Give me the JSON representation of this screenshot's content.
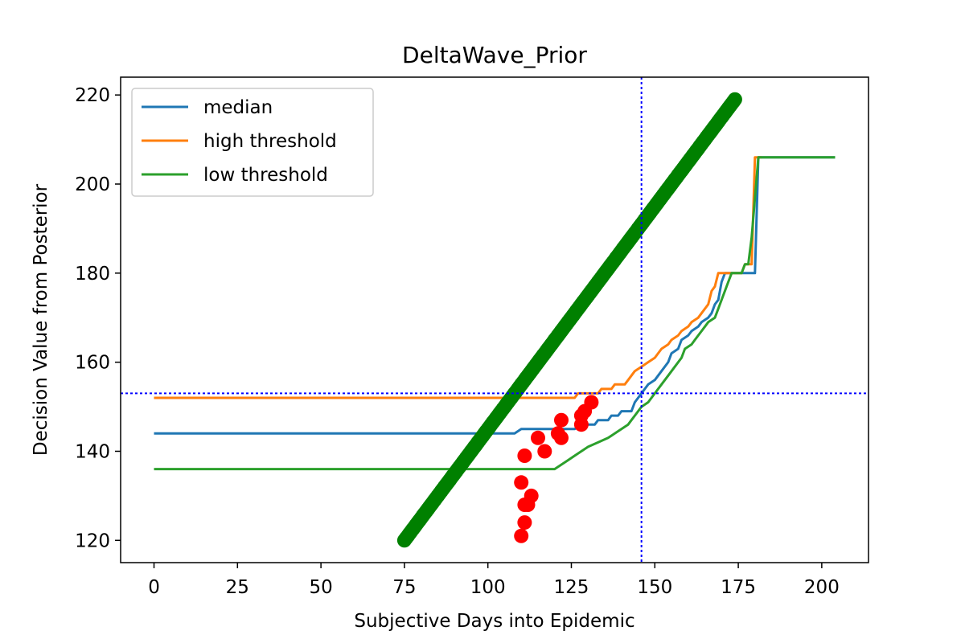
{
  "chart_data": {
    "type": "line",
    "title": "DeltaWave_Prior",
    "xlabel": "Subjective Days into Epidemic",
    "ylabel": "Decision Value from Posterior",
    "xlim": [
      -10,
      214
    ],
    "ylim": [
      115,
      224
    ],
    "xticks": [
      0,
      25,
      50,
      75,
      100,
      125,
      150,
      175,
      200
    ],
    "yticks": [
      120,
      140,
      160,
      180,
      200,
      220
    ],
    "grid": false,
    "legend_position": "top-left",
    "series": [
      {
        "name": "median",
        "color": "#1f77b4",
        "points": [
          [
            0,
            144
          ],
          [
            108,
            144
          ],
          [
            110,
            145
          ],
          [
            126,
            145
          ],
          [
            128,
            146
          ],
          [
            132,
            146
          ],
          [
            133,
            147
          ],
          [
            136,
            147
          ],
          [
            137,
            148
          ],
          [
            139,
            148
          ],
          [
            140,
            149
          ],
          [
            143,
            149
          ],
          [
            144,
            151
          ],
          [
            146,
            153
          ],
          [
            148,
            155
          ],
          [
            150,
            156
          ],
          [
            152,
            158
          ],
          [
            154,
            160
          ],
          [
            155,
            162
          ],
          [
            157,
            163
          ],
          [
            158,
            165
          ],
          [
            160,
            166
          ],
          [
            161,
            167
          ],
          [
            163,
            168
          ],
          [
            164,
            169
          ],
          [
            166,
            170
          ],
          [
            167,
            171
          ],
          [
            168,
            173
          ],
          [
            169,
            174
          ],
          [
            170,
            178
          ],
          [
            171,
            180
          ],
          [
            180,
            180
          ],
          [
            181,
            206
          ],
          [
            204,
            206
          ]
        ]
      },
      {
        "name": "high threshold",
        "color": "#ff7f0e",
        "points": [
          [
            0,
            152
          ],
          [
            126,
            152
          ],
          [
            127,
            153
          ],
          [
            133,
            153
          ],
          [
            134,
            154
          ],
          [
            137,
            154
          ],
          [
            138,
            155
          ],
          [
            141,
            155
          ],
          [
            142,
            156
          ],
          [
            143,
            157
          ],
          [
            144,
            158
          ],
          [
            146,
            159
          ],
          [
            148,
            160
          ],
          [
            150,
            161
          ],
          [
            152,
            163
          ],
          [
            154,
            164
          ],
          [
            155,
            165
          ],
          [
            157,
            166
          ],
          [
            158,
            167
          ],
          [
            160,
            168
          ],
          [
            161,
            169
          ],
          [
            163,
            170
          ],
          [
            164,
            171
          ],
          [
            166,
            173
          ],
          [
            167,
            176
          ],
          [
            168,
            177
          ],
          [
            169,
            180
          ],
          [
            176,
            180
          ],
          [
            177,
            182
          ],
          [
            179,
            182
          ],
          [
            180,
            206
          ],
          [
            182,
            206
          ]
        ]
      },
      {
        "name": "low threshold",
        "color": "#2ca02c",
        "points": [
          [
            0,
            136
          ],
          [
            120,
            136
          ],
          [
            122,
            137
          ],
          [
            124,
            138
          ],
          [
            126,
            139
          ],
          [
            130,
            141
          ],
          [
            133,
            142
          ],
          [
            136,
            143
          ],
          [
            138,
            144
          ],
          [
            140,
            145
          ],
          [
            142,
            146
          ],
          [
            143,
            147
          ],
          [
            144,
            148
          ],
          [
            146,
            150
          ],
          [
            148,
            151
          ],
          [
            150,
            153
          ],
          [
            152,
            155
          ],
          [
            154,
            157
          ],
          [
            156,
            159
          ],
          [
            158,
            161
          ],
          [
            159,
            163
          ],
          [
            161,
            164
          ],
          [
            162,
            165
          ],
          [
            164,
            167
          ],
          [
            165,
            168
          ],
          [
            166,
            169
          ],
          [
            168,
            170
          ],
          [
            169,
            172
          ],
          [
            170,
            174
          ],
          [
            172,
            178
          ],
          [
            173,
            180
          ],
          [
            176,
            180
          ],
          [
            177,
            182
          ],
          [
            178,
            182
          ],
          [
            179,
            188
          ],
          [
            181,
            206
          ],
          [
            204,
            206
          ]
        ]
      }
    ],
    "scatter_series": [
      {
        "color": "#008000",
        "points": [
          [
            75,
            120
          ],
          [
            174,
            219
          ]
        ]
      },
      {
        "color": "#ff0000",
        "points": [
          [
            110,
            121
          ],
          [
            110,
            133
          ],
          [
            111,
            124
          ],
          [
            111,
            128
          ],
          [
            111,
            139
          ],
          [
            112,
            128
          ],
          [
            113,
            130
          ],
          [
            115,
            143
          ],
          [
            117,
            140
          ],
          [
            121,
            144
          ],
          [
            122,
            147
          ],
          [
            122,
            143
          ],
          [
            128,
            146
          ],
          [
            128,
            148
          ],
          [
            129,
            149
          ],
          [
            131,
            151
          ]
        ]
      }
    ],
    "reference_lines": [
      {
        "orientation": "vertical",
        "value": 146,
        "color": "#0000ff"
      },
      {
        "orientation": "horizontal",
        "value": 153,
        "color": "#0000ff"
      }
    ]
  }
}
